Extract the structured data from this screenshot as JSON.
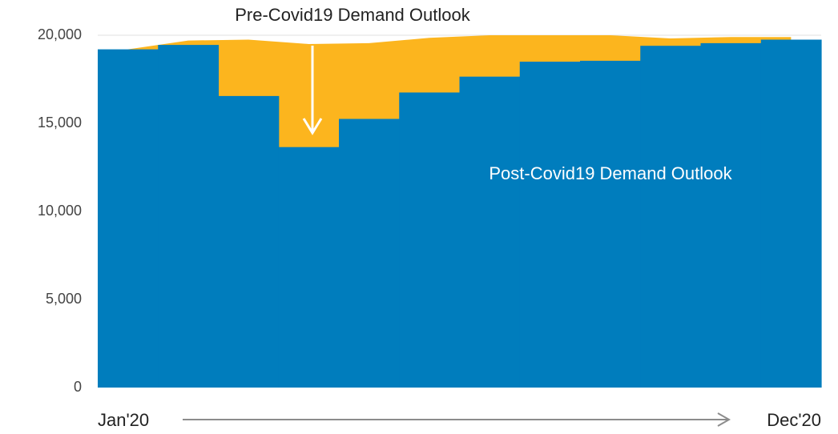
{
  "chart_data": {
    "type": "step_area",
    "categories": [
      "Jan'20",
      null,
      null,
      null,
      null,
      null,
      null,
      null,
      null,
      null,
      null,
      "Dec'20"
    ],
    "series": [
      {
        "name": "Post-Covid19 Demand Outlook",
        "color": "#007dbd",
        "values": [
          19200,
          19450,
          16550,
          13650,
          15250,
          16750,
          17650,
          18500,
          18550,
          19400,
          19550,
          19750
        ]
      },
      {
        "name": "Pre-Covid19 Demand Outlook",
        "color": "#fcb51e",
        "values": [
          19200,
          19700,
          19750,
          19500,
          19550,
          19850,
          20000,
          20000,
          20000,
          19820,
          19900,
          19900
        ]
      }
    ],
    "ylim": [
      0,
      20000
    ],
    "yticks": [
      0,
      {
        "value": 5000,
        "label": "5,000"
      },
      {
        "value": 10000,
        "label": "10,000"
      },
      {
        "value": 15000,
        "label": "15,000"
      },
      {
        "value": 20000,
        "label": "20,000"
      }
    ],
    "grid": false
  }
}
